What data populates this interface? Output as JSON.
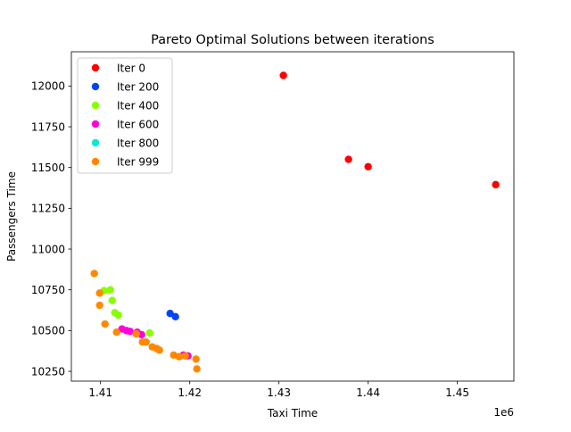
{
  "chart_data": {
    "type": "scatter",
    "title": "Pareto Optimal Solutions between iterations",
    "xlabel": "Taxi Time",
    "ylabel": "Passengers Time",
    "x_offset_label": "1e6",
    "xlim": [
      1406730,
      1456340
    ],
    "ylim": [
      10190,
      12210
    ],
    "x_ticks": [
      1410000,
      1420000,
      1430000,
      1440000,
      1450000
    ],
    "x_tick_labels": [
      "1.41",
      "1.42",
      "1.43",
      "1.44",
      "1.45"
    ],
    "y_ticks": [
      10250,
      10500,
      10750,
      11000,
      11250,
      11500,
      11750,
      12000
    ],
    "y_tick_labels": [
      "10250",
      "10500",
      "10750",
      "11000",
      "11250",
      "11500",
      "11750",
      "12000"
    ],
    "grid": false,
    "legend_position": "top-left",
    "series": [
      {
        "name": "Iter 0",
        "color": "#ff0000",
        "points": [
          [
            1430500,
            12065
          ],
          [
            1437800,
            11550
          ],
          [
            1440000,
            11505
          ],
          [
            1454300,
            11395
          ]
        ]
      },
      {
        "name": "Iter 200",
        "color": "#0044ff",
        "points": [
          [
            1417800,
            10605
          ],
          [
            1418400,
            10585
          ]
        ]
      },
      {
        "name": "Iter 400",
        "color": "#88ff00",
        "points": [
          [
            1410400,
            10745
          ],
          [
            1411100,
            10750
          ],
          [
            1411300,
            10685
          ],
          [
            1411600,
            10610
          ],
          [
            1412000,
            10595
          ],
          [
            1415500,
            10485
          ]
        ]
      },
      {
        "name": "Iter 600",
        "color": "#ff00dd",
        "points": [
          [
            1412400,
            10510
          ],
          [
            1412900,
            10500
          ],
          [
            1413300,
            10495
          ],
          [
            1414100,
            10490
          ],
          [
            1414600,
            10475
          ],
          [
            1419300,
            10350
          ],
          [
            1419800,
            10345
          ]
        ]
      },
      {
        "name": "Iter 800",
        "color": "#00eecc",
        "points": []
      },
      {
        "name": "Iter 999",
        "color": "#ff8800",
        "points": [
          [
            1409300,
            10850
          ],
          [
            1409900,
            10730
          ],
          [
            1409900,
            10655
          ],
          [
            1410500,
            10540
          ],
          [
            1411800,
            10490
          ],
          [
            1414000,
            10480
          ],
          [
            1414700,
            10430
          ],
          [
            1415100,
            10430
          ],
          [
            1415800,
            10400
          ],
          [
            1416300,
            10390
          ],
          [
            1416600,
            10380
          ],
          [
            1418200,
            10350
          ],
          [
            1418800,
            10340
          ],
          [
            1419500,
            10345
          ],
          [
            1420700,
            10325
          ],
          [
            1420800,
            10265
          ]
        ]
      }
    ]
  }
}
